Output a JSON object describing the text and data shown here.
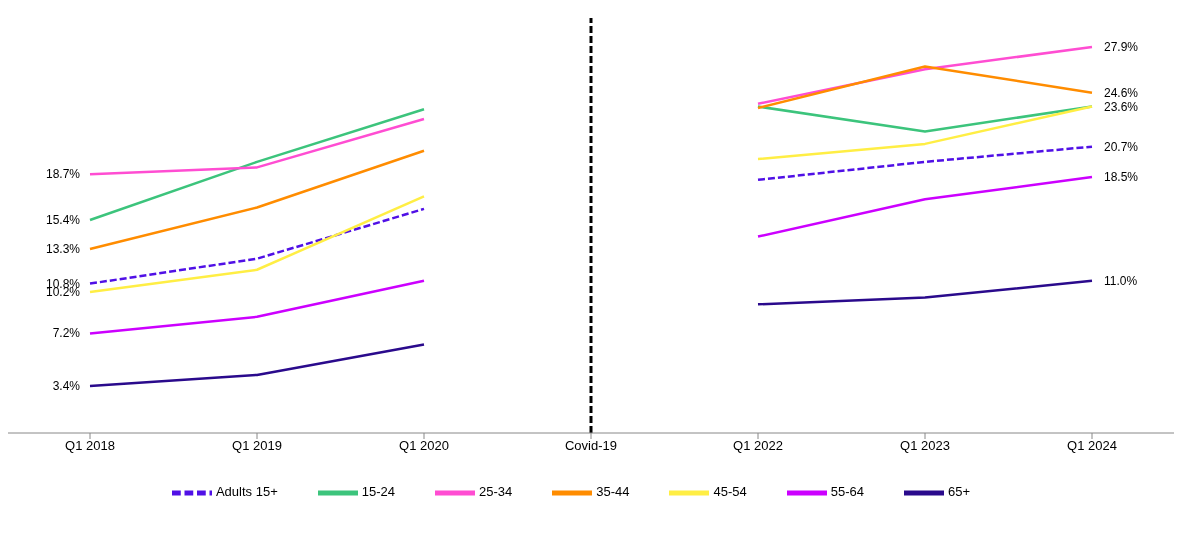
{
  "chart_data": {
    "type": "line",
    "categories": [
      "Q1 2018",
      "Q1 2019",
      "Q1 2020",
      "Covid-19",
      "Q1 2022",
      "Q1 2023",
      "Q1 2024"
    ],
    "ylim": [
      0,
      30
    ],
    "legend": "bottom",
    "marker": "none",
    "ref_lines": [
      {
        "axis": "x",
        "value": "Covid-19",
        "color": "#000000",
        "line_style": "dashed"
      }
    ],
    "series": [
      {
        "name": "Adults 15+",
        "color": "#5010e6",
        "line_style": "dashed",
        "values": [
          10.8,
          12.6,
          16.2,
          null,
          18.3,
          19.6,
          20.7
        ],
        "value_labels": [
          "10.8%",
          null,
          null,
          null,
          null,
          null,
          "20.7%"
        ]
      },
      {
        "name": "15-24",
        "color": "#3cc47c",
        "line_style": "solid",
        "values": [
          15.4,
          19.6,
          23.4,
          null,
          23.6,
          21.8,
          23.6
        ],
        "value_labels": [
          "15.4%",
          null,
          null,
          null,
          null,
          null,
          "23.6%"
        ]
      },
      {
        "name": "25-34",
        "color": "#ff4dd2",
        "line_style": "solid",
        "values": [
          18.7,
          19.2,
          22.7,
          null,
          23.8,
          26.3,
          27.9
        ],
        "value_labels": [
          "18.7%",
          null,
          null,
          null,
          null,
          null,
          "27.9%"
        ]
      },
      {
        "name": "35-44",
        "color": "#ff8c00",
        "line_style": "solid",
        "values": [
          13.3,
          16.3,
          20.4,
          null,
          23.5,
          26.5,
          24.6
        ],
        "value_labels": [
          "13.3%",
          null,
          null,
          null,
          null,
          null,
          "24.6%"
        ]
      },
      {
        "name": "45-54",
        "color": "#ffee44",
        "line_style": "solid",
        "values": [
          10.2,
          11.8,
          17.1,
          null,
          19.8,
          20.9,
          23.6
        ],
        "value_labels": [
          "10.2%",
          null,
          null,
          null,
          null,
          null,
          null
        ]
      },
      {
        "name": "55-64",
        "color": "#cc00ff",
        "line_style": "solid",
        "values": [
          7.2,
          8.4,
          11.0,
          null,
          14.2,
          16.9,
          18.5
        ],
        "value_labels": [
          "7.2%",
          null,
          null,
          null,
          null,
          null,
          "18.5%"
        ]
      },
      {
        "name": "65+",
        "color": "#2a0a8c",
        "line_style": "solid",
        "values": [
          3.4,
          4.2,
          6.4,
          null,
          9.3,
          9.8,
          11.0
        ],
        "value_labels": [
          "3.4%",
          null,
          null,
          null,
          null,
          null,
          "11.0%"
        ]
      }
    ]
  }
}
